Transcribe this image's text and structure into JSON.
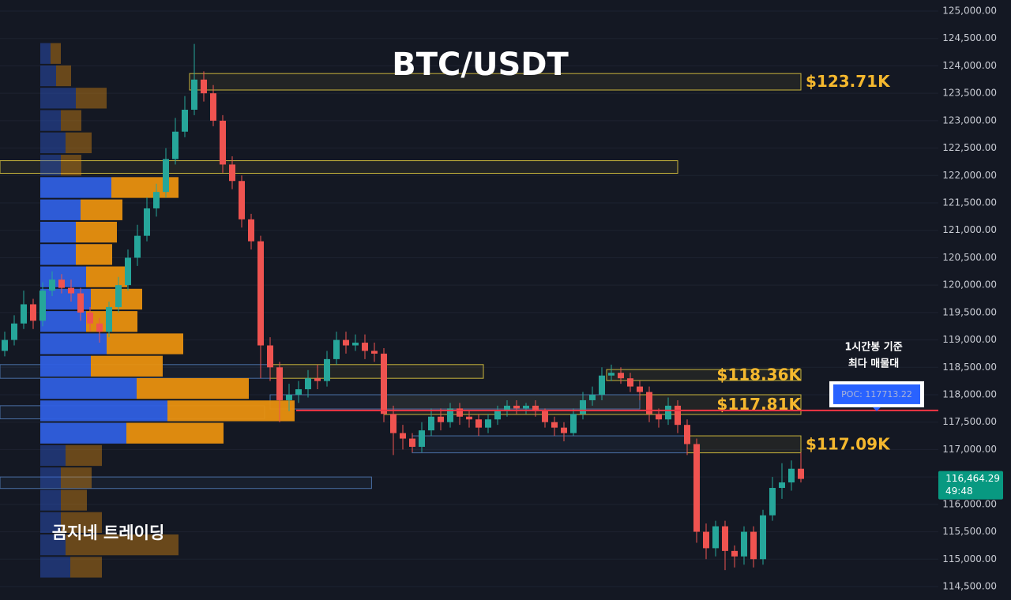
{
  "chart_data": {
    "type": "candlestick",
    "title": "BTC/USDT",
    "watermark": "곰지네 트레이딩",
    "ylim": [
      114255,
      125202
    ],
    "yticks": [
      {
        "value": 125000,
        "label": "125,000.00"
      },
      {
        "value": 124500,
        "label": "124,500.00"
      },
      {
        "value": 124000,
        "label": "124,000.00"
      },
      {
        "value": 123500,
        "label": "123,500.00"
      },
      {
        "value": 123000,
        "label": "123,000.00"
      },
      {
        "value": 122500,
        "label": "122,500.00"
      },
      {
        "value": 122000,
        "label": "122,000.00"
      },
      {
        "value": 121500,
        "label": "121,500.00"
      },
      {
        "value": 121000,
        "label": "121,000.00"
      },
      {
        "value": 120500,
        "label": "120,500.00"
      },
      {
        "value": 120000,
        "label": "120,000.00"
      },
      {
        "value": 119500,
        "label": "119,500.00"
      },
      {
        "value": 119000,
        "label": "119,000.00"
      },
      {
        "value": 118500,
        "label": "118,500.00"
      },
      {
        "value": 118000,
        "label": "118,000.00"
      },
      {
        "value": 117500,
        "label": "117,500.00"
      },
      {
        "value": 117000,
        "label": "117,000.00"
      },
      {
        "value": 116500,
        "label": "116,500.00"
      },
      {
        "value": 116000,
        "label": "116,000.00"
      },
      {
        "value": 115500,
        "label": "115,500.00"
      },
      {
        "value": 115000,
        "label": "115,000.00"
      },
      {
        "value": 114500,
        "label": "114,500.00"
      }
    ],
    "grid": true,
    "up_color": "#26a69a",
    "down_color": "#ef5350",
    "open": [
      118800,
      119000,
      119300,
      119650,
      119350,
      119900,
      120100,
      119950,
      119850,
      119500,
      119300,
      119150,
      119600,
      120000,
      120500,
      120900,
      121400,
      121700,
      122300,
      122800,
      123200,
      123750,
      123500,
      123000,
      122200,
      121900,
      121200,
      120800,
      118900,
      118500,
      117900,
      118000,
      118100,
      118300,
      118250,
      118650,
      119000,
      118900,
      118950,
      118800,
      118750,
      117650,
      117300,
      117200,
      117050,
      117350,
      117600,
      117500,
      117750,
      117600,
      117550,
      117400,
      117550,
      117700,
      117800,
      117750,
      117800,
      117700,
      117500,
      117400,
      117300,
      117650,
      117900,
      118000,
      118350,
      118400,
      118300,
      118150,
      118050,
      117650,
      117550,
      117800,
      117450,
      117100,
      115500,
      115200,
      115600,
      115150,
      115050,
      115500,
      115000,
      115800,
      116300,
      116400,
      116650
    ],
    "high": [
      119150,
      119450,
      119900,
      119750,
      120050,
      120250,
      120200,
      120100,
      119950,
      119600,
      119400,
      119700,
      120150,
      120650,
      121100,
      121600,
      121850,
      122500,
      123050,
      123450,
      124400,
      123900,
      123650,
      123100,
      122350,
      122000,
      121300,
      120900,
      119050,
      118600,
      118200,
      118250,
      118450,
      118550,
      118800,
      119150,
      119150,
      119100,
      119100,
      118950,
      118850,
      117800,
      117450,
      117300,
      117500,
      117750,
      117750,
      117850,
      117850,
      117700,
      117650,
      117650,
      117800,
      117900,
      117900,
      117850,
      117900,
      117750,
      117600,
      117500,
      117750,
      118050,
      118150,
      118500,
      118550,
      118500,
      118400,
      118250,
      118150,
      117750,
      117950,
      117900,
      117550,
      117200,
      115650,
      115700,
      115700,
      115250,
      115600,
      115600,
      115900,
      116500,
      116750,
      116800,
      116950
    ],
    "low": [
      118700,
      118900,
      119200,
      119200,
      119250,
      119800,
      119850,
      119700,
      119350,
      119150,
      118950,
      119050,
      119500,
      119900,
      120350,
      120800,
      121250,
      121600,
      122200,
      122700,
      123100,
      123350,
      122900,
      122050,
      121750,
      121050,
      120650,
      118300,
      118250,
      117500,
      117700,
      117850,
      117950,
      118100,
      118150,
      118550,
      118750,
      118800,
      118650,
      118600,
      117500,
      116900,
      117000,
      116950,
      116950,
      117250,
      117350,
      117400,
      117450,
      117400,
      117250,
      117300,
      117450,
      117600,
      117650,
      117650,
      117600,
      117400,
      117250,
      117150,
      117250,
      117550,
      117800,
      117900,
      118250,
      118200,
      118050,
      117900,
      117500,
      117400,
      117450,
      117300,
      116900,
      115300,
      115000,
      115050,
      114800,
      114850,
      114900,
      114850,
      114900,
      115700,
      116100,
      116250,
      116400
    ],
    "close": [
      119000,
      119300,
      119650,
      119350,
      119900,
      120100,
      119950,
      119850,
      119500,
      119300,
      119150,
      119600,
      120000,
      120500,
      120900,
      121400,
      121700,
      122300,
      122800,
      123200,
      123750,
      123500,
      123000,
      122200,
      121900,
      121200,
      120800,
      118900,
      118500,
      117900,
      118000,
      118100,
      118300,
      118250,
      118650,
      119000,
      118900,
      118950,
      118800,
      118750,
      117650,
      117300,
      117200,
      117050,
      117350,
      117600,
      117500,
      117750,
      117600,
      117550,
      117400,
      117550,
      117700,
      117800,
      117750,
      117800,
      117700,
      117500,
      117400,
      117300,
      117650,
      117900,
      118000,
      118350,
      118400,
      118300,
      118150,
      118050,
      117650,
      117550,
      117800,
      117450,
      117100,
      115500,
      115200,
      115600,
      115150,
      115050,
      115500,
      115000,
      115800,
      116300,
      116400,
      116650,
      116464.29
    ],
    "volume_profile": {
      "bins": [
        114650,
        115057.5,
        115465,
        115872.5,
        116280,
        116687.5,
        117095,
        117502.5,
        117910,
        118317.5,
        118725,
        119132.5,
        119540,
        119947.5,
        120355,
        120762.5,
        121170,
        121577.5,
        121985,
        122392.5,
        122800,
        123207.5,
        123615,
        124022.5,
        124430
      ],
      "buy": [
        38,
        32,
        26,
        26,
        26,
        32,
        109,
        161,
        122,
        64,
        84,
        58,
        64,
        58,
        45,
        45,
        51,
        90,
        26,
        32,
        26,
        45,
        20,
        13
      ],
      "sell": [
        40,
        143,
        52,
        33,
        39,
        46,
        123,
        161,
        142,
        91,
        97,
        65,
        65,
        52,
        46,
        52,
        53,
        85,
        26,
        33,
        26,
        39,
        19,
        13
      ],
      "buy_color": "#2f5fe0",
      "sell_color": "#e8900f",
      "value_area": [
        117095,
        121985
      ]
    },
    "zones": [
      {
        "top": 123860,
        "bottom": 123560,
        "from": 19.5,
        "to": 84,
        "color": "#c9b53c",
        "label": "$123.71K",
        "label_position": "outside"
      },
      {
        "top": 122270,
        "bottom": 122040,
        "from": -0.5,
        "to": 71,
        "color": "#c9b53c"
      },
      {
        "top": 118550,
        "bottom": 118300,
        "from": 28,
        "to": 50.5,
        "color": "#c9b53c"
      },
      {
        "top": 118460,
        "bottom": 118260,
        "from": 63.5,
        "to": 84,
        "color": "#c9b53c",
        "label": "$118.36K",
        "label_position": "inside"
      },
      {
        "top": 118000,
        "bottom": 117640,
        "from": 40,
        "to": 84,
        "color": "#c9b53c",
        "label": "$117.81K",
        "label_position": "inside"
      },
      {
        "top": 117250,
        "bottom": 116940,
        "from": 72,
        "to": 84,
        "color": "#c9b53c",
        "label": "$117.09K",
        "label_position": "outside"
      },
      {
        "top": 118550,
        "bottom": 118300,
        "from": -0.5,
        "to": 28,
        "color": "#4a6fa5"
      },
      {
        "top": 118000,
        "bottom": 117740,
        "from": 28,
        "to": 67,
        "color": "#4a6fa5"
      },
      {
        "top": 117800,
        "bottom": 117560,
        "from": -0.5,
        "to": 27.4,
        "color": "#4a6fa5"
      },
      {
        "top": 117250,
        "bottom": 116940,
        "from": 43,
        "to": 72,
        "color": "#4a6fa5"
      },
      {
        "top": 116500,
        "bottom": 116290,
        "from": -0.5,
        "to": 38.7,
        "color": "#4a6fa5"
      }
    ],
    "poc": {
      "value": 117713.22,
      "label": "POC: 117713.22",
      "note": [
        "1시간봉 기준",
        "최다 매물대"
      ],
      "color": "#f23645"
    },
    "last_price": {
      "value": 116464.29,
      "label": "116,464.29",
      "countdown": "49:48",
      "color": "#089981"
    }
  }
}
